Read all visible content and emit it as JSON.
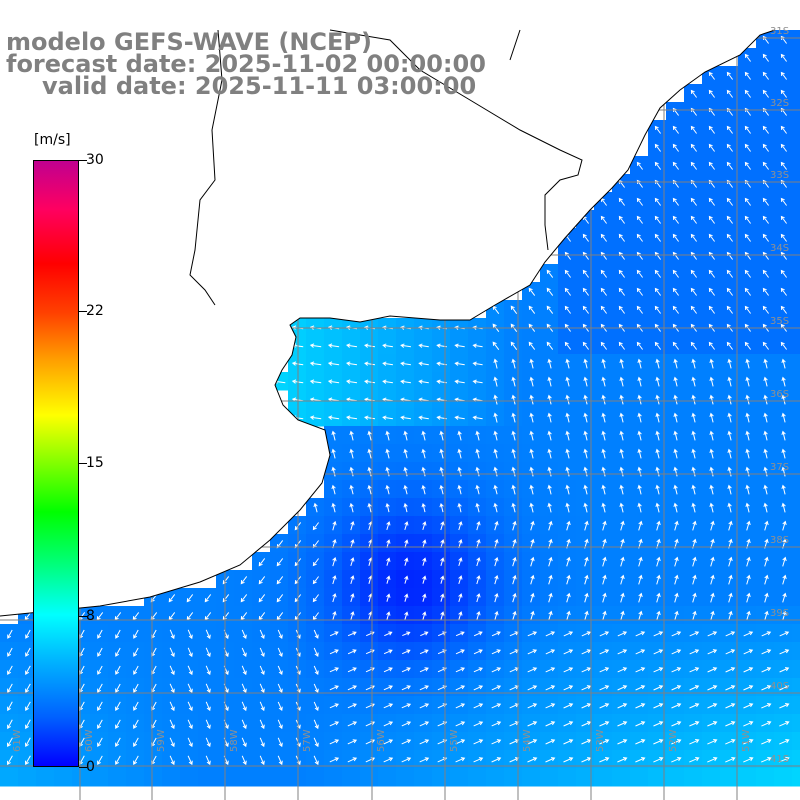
{
  "title": {
    "line1": "modelo GEFS-WAVE (NCEP)",
    "line2": "forecast date: 2025-11-02 00:00:00",
    "line3": "valid date: 2025-11-11 03:00:00"
  },
  "colorbar": {
    "unit": "[m/s]",
    "ticks": [
      "30",
      "22",
      "15",
      "8",
      "0"
    ],
    "range": [
      0,
      30
    ],
    "colors": [
      "#0000ff",
      "#0060ff",
      "#00b0ff",
      "#00ffff",
      "#00ff80",
      "#00ff00",
      "#80ff00",
      "#ffff00",
      "#ffa000",
      "#ff4000",
      "#ff0000",
      "#ff0060",
      "#c00090"
    ]
  },
  "lat_labels": [
    "31S",
    "32S",
    "33S",
    "34S",
    "35S",
    "36S",
    "37S",
    "38S",
    "39S",
    "40S",
    "41S"
  ],
  "lon_labels": [
    "61W",
    "60W",
    "59W",
    "58W",
    "57W",
    "56W",
    "55W",
    "54W",
    "53W",
    "52W",
    "51W"
  ],
  "colors": {
    "land": "#ffffff",
    "coast": "#000000",
    "grid": "#808080",
    "arrow": "#ffffff",
    "title": "#808080"
  }
}
